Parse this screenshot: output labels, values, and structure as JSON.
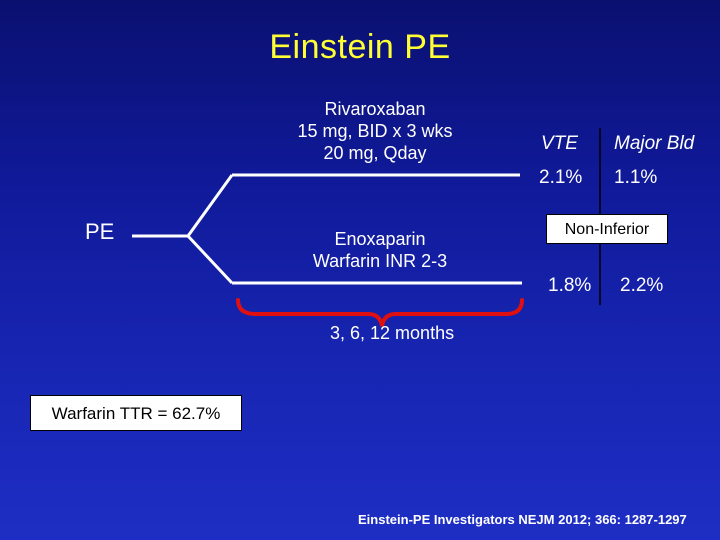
{
  "title": "Einstein PE",
  "pe_label": "PE",
  "arms": {
    "rivaroxaban": [
      "Rivaroxaban",
      "15 mg, BID x 3 wks",
      "20 mg, Qday"
    ],
    "enoxaparin": [
      "Enoxaparin",
      "Warfarin INR 2-3"
    ]
  },
  "outcomes": {
    "header_vte": "VTE",
    "header_major_bleed": "Major Bld",
    "riva_vte": "2.1%",
    "riva_bleed": "1.1%",
    "enox_vte": "1.8%",
    "enox_bleed": "2.2%"
  },
  "non_inferior": "Non-Inferior",
  "duration": "3, 6, 12 months",
  "ttr": "Warfarin TTR = 62.7%",
  "citation": "Einstein-PE Investigators NEJM 2012; 366: 1287-1297",
  "colors": {
    "title": "#ffff33",
    "brace": "#e01010",
    "background_top": "#0a1070",
    "background_bottom": "#1e2ec4"
  }
}
